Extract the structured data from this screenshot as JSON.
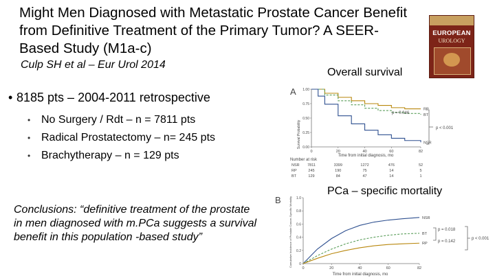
{
  "slide": {
    "title": "Might Men Diagnosed with Metastatic Prostate Cancer Benefit from Definitive Treatment of the Primary Tumor? A SEER-Based Study (M1a-c)",
    "citation": "Culp SH et al – Eur Urol 2014",
    "journal_cover": {
      "name": "EUROPEAN",
      "subname": "UROLOGY"
    },
    "overall_label": "Overall survival",
    "specific_label": "PCa – specific mortality",
    "main_bullet": "8185 pts – 2004-2011 retrospective",
    "sub_bullets": [
      "No Surgery / Rdt – n = 7811 pts",
      "Radical Prostatectomy – n= 245 pts",
      "Brachytherapy – n = 129 pts"
    ],
    "conclusion": "Conclusions: “definitive treatment of the prostate in men diagnosed with m.PCa suggests a survival benefit in this population -based study”"
  },
  "chart_data": [
    {
      "type": "line",
      "panel": "A",
      "title": "Overall survival",
      "xlabel": "Time from initial diagnosis, mo",
      "ylabel": "Survival Probability",
      "xlim": [
        0,
        82
      ],
      "ylim": [
        0,
        1
      ],
      "x_ticks": [
        "0",
        "20",
        "40",
        "60",
        "82"
      ],
      "y_ticks": [
        "0.00",
        "0.25",
        "0.50",
        "0.75",
        "1.00"
      ],
      "series": [
        {
          "name": "RP",
          "x": [
            0,
            10,
            20,
            30,
            40,
            50,
            60,
            70,
            82
          ],
          "y": [
            1.0,
            0.93,
            0.86,
            0.8,
            0.75,
            0.72,
            0.68,
            0.66,
            0.66
          ]
        },
        {
          "name": "BT",
          "x": [
            0,
            10,
            20,
            30,
            40,
            50,
            60,
            70,
            82
          ],
          "y": [
            1.0,
            0.9,
            0.8,
            0.73,
            0.67,
            0.63,
            0.6,
            0.58,
            0.56
          ]
        },
        {
          "name": "NSR",
          "x": [
            0,
            5,
            10,
            20,
            30,
            40,
            50,
            60,
            70,
            82
          ],
          "y": [
            1.0,
            0.88,
            0.74,
            0.54,
            0.4,
            0.29,
            0.21,
            0.15,
            0.11,
            0.08
          ]
        }
      ],
      "annotations": [
        "p = 0.046",
        "p < 0.001"
      ],
      "risk_table": {
        "header": "Number at risk",
        "rows": [
          {
            "label": "NSR",
            "values": [
              "7811",
              "3399",
              "1272",
              "476",
              "52"
            ]
          },
          {
            "label": "RP",
            "values": [
              "245",
              "190",
              "75",
              "14",
              "5"
            ]
          },
          {
            "label": "BT",
            "values": [
              "129",
              "84",
              "47",
              "14",
              "1"
            ]
          }
        ]
      }
    },
    {
      "type": "line",
      "panel": "B",
      "title": "PCa – specific mortality",
      "xlabel": "Time from initial diagnosis, mo",
      "ylabel": "Cumulative Incidence of Prostate Cancer-Specific Mortality",
      "xlim": [
        0,
        82
      ],
      "ylim": [
        0,
        1
      ],
      "x_ticks": [
        "0",
        "20",
        "40",
        "60",
        "82"
      ],
      "y_ticks": [
        "0",
        "0.2",
        "0.4",
        "0.6",
        "0.8",
        "1.0"
      ],
      "series": [
        {
          "name": "NSR",
          "x": [
            0,
            10,
            20,
            30,
            40,
            50,
            60,
            70,
            82
          ],
          "y": [
            0,
            0.22,
            0.38,
            0.5,
            0.58,
            0.63,
            0.66,
            0.68,
            0.7
          ]
        },
        {
          "name": "BT",
          "x": [
            0,
            10,
            20,
            30,
            40,
            50,
            60,
            70,
            82
          ],
          "y": [
            0,
            0.12,
            0.22,
            0.3,
            0.36,
            0.4,
            0.43,
            0.45,
            0.46
          ]
        },
        {
          "name": "RP",
          "x": [
            0,
            10,
            20,
            30,
            40,
            50,
            60,
            70,
            82
          ],
          "y": [
            0,
            0.08,
            0.15,
            0.2,
            0.24,
            0.27,
            0.29,
            0.3,
            0.31
          ]
        }
      ],
      "annotations": [
        "p = 0.018",
        "p = 0.142",
        "p < 0.001"
      ]
    }
  ]
}
